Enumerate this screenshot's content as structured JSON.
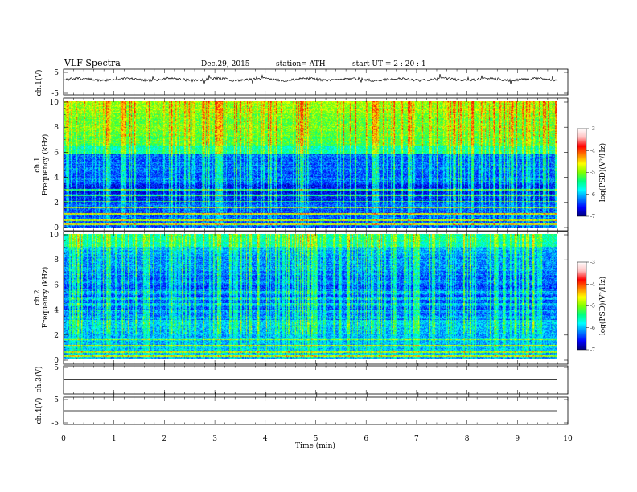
{
  "header": {
    "title": "VLF  Spectra",
    "date": "Dec.29, 2015",
    "station": "station= ATH",
    "start": "start  UT =   2  : 20 : 1"
  },
  "colors": {
    "colormap": [
      "#00007a",
      "#0000ff",
      "#0080ff",
      "#00ffff",
      "#00ff80",
      "#80ff00",
      "#ffff00",
      "#ff8000",
      "#ff0000",
      "#ffc0c0",
      "#ffffff"
    ]
  },
  "chart_data": [
    {
      "type": "line",
      "name": "waveform-ch1",
      "ylabel": "ch.1(V)",
      "ylim": [
        -5,
        5
      ],
      "yticks": [
        "5",
        "-5"
      ],
      "description_level": 1.0,
      "x_range_min": [
        0,
        9.8
      ]
    },
    {
      "type": "heatmap",
      "name": "spectrogram-ch1",
      "ylabel_line1": "ch.1",
      "ylabel_line2": "Frequency  (kHz)",
      "ylim": [
        0,
        10
      ],
      "yticks": [
        "0",
        "2",
        "4",
        "6",
        "8",
        "10"
      ],
      "colorbar": {
        "label": "log(PSD)(V²/Hz)",
        "range": [
          -7,
          -3
        ],
        "ticks": [
          "-3",
          "-4",
          "-5",
          "-6",
          "-7"
        ]
      }
    },
    {
      "type": "heatmap",
      "name": "spectrogram-ch2",
      "ylabel_line1": "ch.2",
      "ylabel_line2": "Frequency  (kHz)",
      "ylim": [
        0,
        10
      ],
      "yticks": [
        "0",
        "2",
        "4",
        "6",
        "8",
        "10"
      ],
      "colorbar": {
        "label": "log(PSD)(V²/Hz)",
        "range": [
          -7,
          -3
        ],
        "ticks": [
          "-3",
          "-4",
          "-5",
          "-6",
          "-7"
        ]
      }
    },
    {
      "type": "line",
      "name": "waveform-ch3",
      "ylabel": "ch.3(V)",
      "ylim": [
        -5,
        5
      ],
      "yticks": [
        "5"
      ],
      "level": 0
    },
    {
      "type": "line",
      "name": "waveform-ch4",
      "ylabel": "ch.4(V)",
      "ylim": [
        -5,
        5
      ],
      "yticks": [
        "5",
        "-5"
      ],
      "level": 0
    }
  ],
  "xaxis": {
    "label": "Time  (min)",
    "range": [
      0,
      10
    ],
    "ticks": [
      "0",
      "1",
      "2",
      "3",
      "4",
      "5",
      "6",
      "7",
      "8",
      "9",
      "10"
    ]
  }
}
